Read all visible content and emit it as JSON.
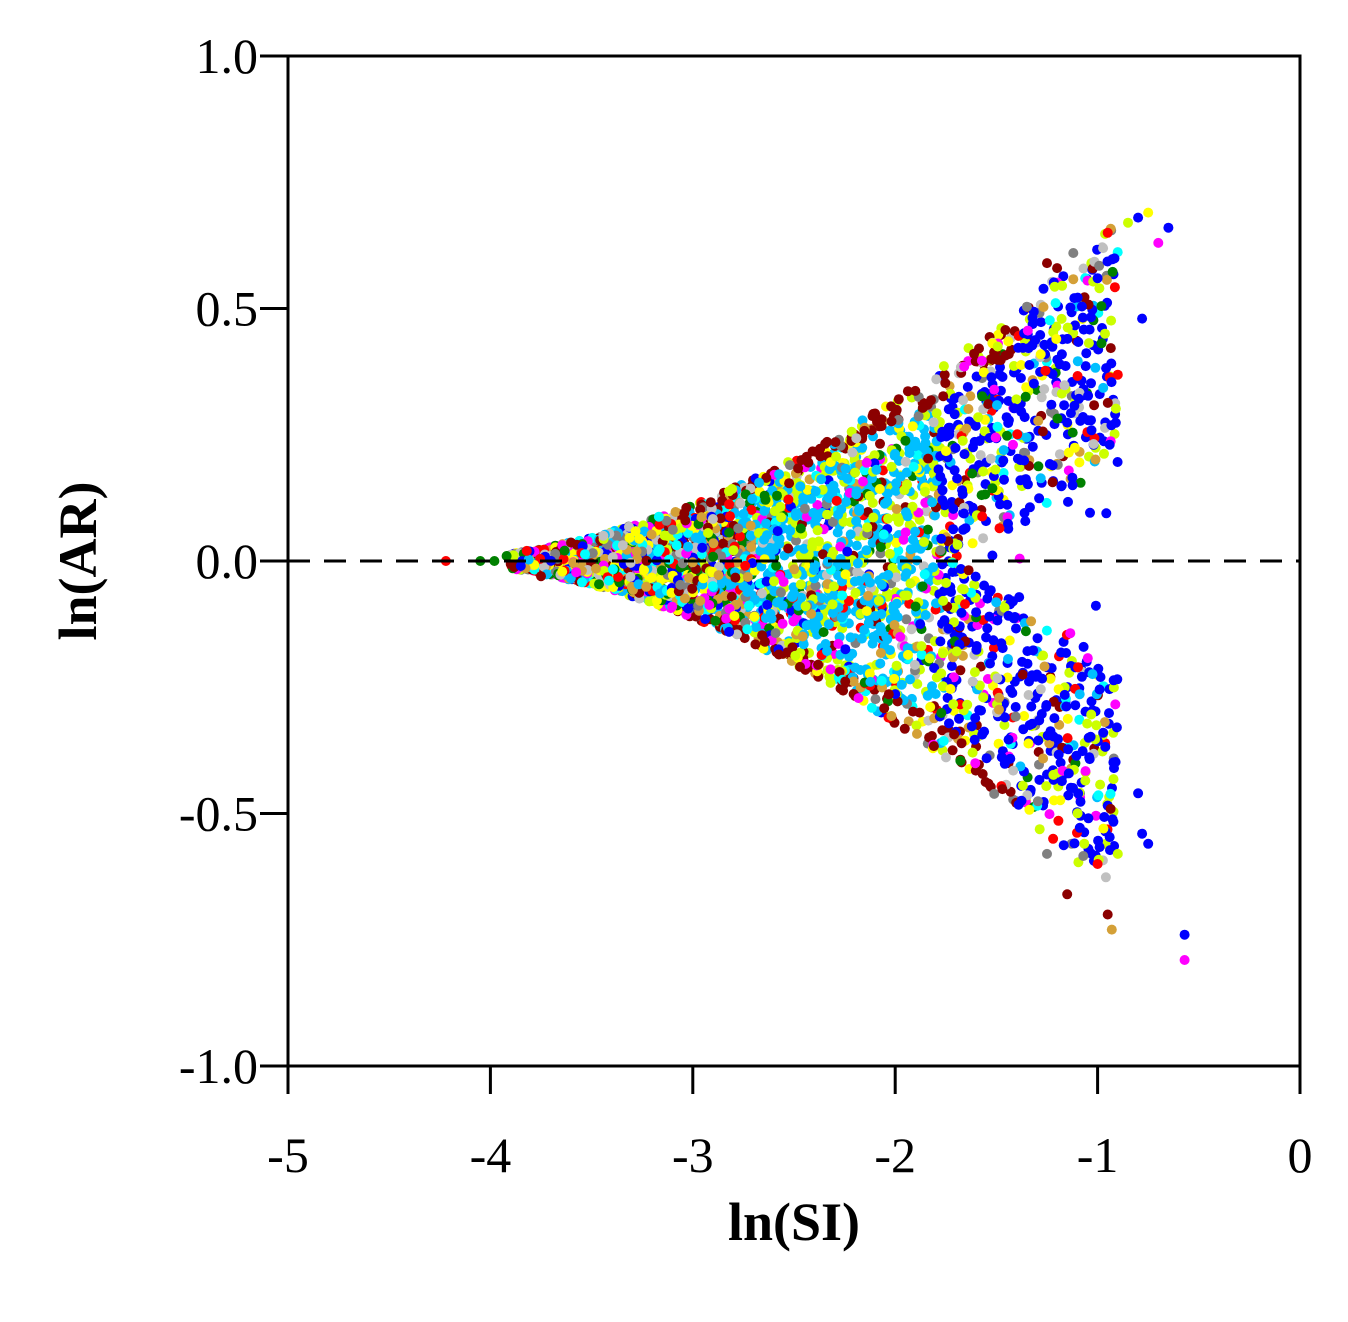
{
  "chart_data": {
    "type": "scatter",
    "title": "",
    "xlabel": "ln(SI)",
    "ylabel": "ln(AR)",
    "xlim": [
      -5,
      0
    ],
    "ylim": [
      -1.0,
      1.0
    ],
    "xticks": [
      -5,
      -4,
      -3,
      -2,
      -1,
      0
    ],
    "xtick_labels": [
      "-5",
      "-4",
      "-3",
      "-2",
      "-1",
      "0"
    ],
    "yticks": [
      1.0,
      0.5,
      0.0,
      -0.5,
      -1.0
    ],
    "ytick_labels": [
      "1.0",
      "0.5",
      "0.0",
      "-0.5",
      "-1.0"
    ],
    "grid": false,
    "legend": "none",
    "reference_line": {
      "y": 0.0,
      "style": "dashed",
      "color": "#000000"
    },
    "palette": [
      "#8b0000",
      "#d4a037",
      "#c0c0c0",
      "#ff0000",
      "#ff00ff",
      "#808080",
      "#00bfff",
      "#ccff00",
      "#0000ff",
      "#008000",
      "#ffff00",
      "#00ffff"
    ],
    "series": [
      {
        "color": "#000000",
        "points": [
          [
            -4.22,
            0.0
          ],
          [
            -4.05,
            0.0
          ],
          [
            -3.98,
            0.0
          ],
          [
            -3.92,
            0.01
          ],
          [
            -3.82,
            0.02
          ],
          [
            -3.85,
            -0.01
          ],
          [
            -3.75,
            -0.03
          ],
          [
            -0.95,
            0.65
          ],
          [
            -0.8,
            0.68
          ],
          [
            -0.75,
            0.69
          ],
          [
            -0.7,
            0.63
          ],
          [
            -0.65,
            0.66
          ],
          [
            -0.85,
            0.67
          ],
          [
            -1.0,
            0.56
          ],
          [
            -0.78,
            0.48
          ],
          [
            -1.25,
            0.59
          ],
          [
            -1.2,
            0.58
          ],
          [
            -1.12,
            0.61
          ],
          [
            -0.57,
            -0.74
          ],
          [
            -0.57,
            -0.79
          ],
          [
            -0.93,
            -0.73
          ],
          [
            -0.95,
            -0.7
          ],
          [
            -1.15,
            -0.66
          ],
          [
            -1.0,
            -0.6
          ],
          [
            -0.9,
            -0.58
          ],
          [
            -0.75,
            -0.56
          ],
          [
            -0.78,
            -0.54
          ],
          [
            -0.8,
            -0.46
          ],
          [
            -1.25,
            -0.58
          ],
          [
            -1.22,
            -0.55
          ]
        ]
      }
    ]
  }
}
